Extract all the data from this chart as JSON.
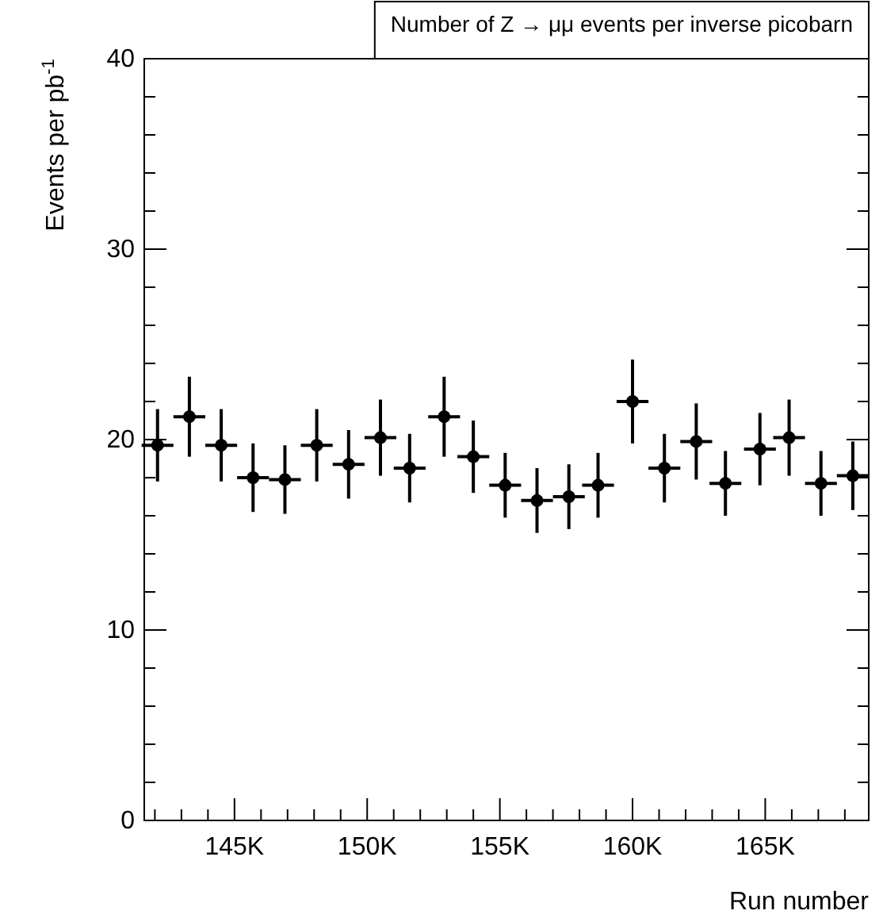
{
  "chart_data": {
    "type": "scatter",
    "title": "Number of Z → μμ events per inverse picobarn",
    "xlabel": "Run number",
    "ylabel": "Events per pb$^{-1}$",
    "x": [
      142.1,
      143.3,
      144.5,
      145.7,
      146.9,
      148.1,
      149.3,
      150.5,
      151.6,
      152.9,
      154.0,
      155.2,
      156.4,
      157.6,
      158.7,
      160.0,
      161.2,
      162.4,
      163.5,
      164.8,
      165.9,
      167.1,
      168.3
    ],
    "values": [
      19.7,
      21.2,
      19.7,
      18.0,
      17.9,
      19.7,
      18.7,
      20.1,
      18.5,
      21.2,
      19.1,
      17.6,
      16.8,
      17.0,
      17.6,
      22.0,
      18.5,
      19.9,
      17.7,
      19.5,
      20.1,
      17.7,
      18.1
    ],
    "errors": [
      1.9,
      2.1,
      1.9,
      1.8,
      1.8,
      1.9,
      1.8,
      2.0,
      1.8,
      2.1,
      1.9,
      1.7,
      1.7,
      1.7,
      1.7,
      2.2,
      1.8,
      2.0,
      1.7,
      1.9,
      2.0,
      1.7,
      1.8
    ],
    "xerrors": [
      0.6,
      0.6,
      0.6,
      0.6,
      0.6,
      0.6,
      0.6,
      0.6,
      0.6,
      0.6,
      0.6,
      0.6,
      0.6,
      0.6,
      0.6,
      0.6,
      0.6,
      0.6,
      0.6,
      0.6,
      0.6,
      0.6,
      0.6
    ],
    "color": "#000000",
    "marker": "circle",
    "xlim": [
      141.6,
      168.9
    ],
    "xticks": [
      {
        "value": 142,
        "label": null
      },
      {
        "value": 143,
        "label": null
      },
      {
        "value": 144,
        "label": null
      },
      {
        "value": 145,
        "label": "145K"
      },
      {
        "value": 146,
        "label": null
      },
      {
        "value": 147,
        "label": null
      },
      {
        "value": 148,
        "label": null
      },
      {
        "value": 149,
        "label": null
      },
      {
        "value": 150,
        "label": "150K"
      },
      {
        "value": 151,
        "label": null
      },
      {
        "value": 152,
        "label": null
      },
      {
        "value": 153,
        "label": null
      },
      {
        "value": 154,
        "label": null
      },
      {
        "value": 155,
        "label": "155K"
      },
      {
        "value": 156,
        "label": null
      },
      {
        "value": 157,
        "label": null
      },
      {
        "value": 158,
        "label": null
      },
      {
        "value": 159,
        "label": null
      },
      {
        "value": 160,
        "label": "160K"
      },
      {
        "value": 161,
        "label": null
      },
      {
        "value": 162,
        "label": null
      },
      {
        "value": 163,
        "label": null
      },
      {
        "value": 164,
        "label": null
      },
      {
        "value": 165,
        "label": "165K"
      },
      {
        "value": 166,
        "label": null
      },
      {
        "value": 167,
        "label": null
      },
      {
        "value": 168,
        "label": null
      }
    ],
    "ylim": [
      0,
      40
    ],
    "yticks": [
      0,
      {
        "value": 2,
        "label": null
      },
      {
        "value": 4,
        "label": null
      },
      {
        "value": 6,
        "label": null
      },
      {
        "value": 8,
        "label": null
      },
      10,
      {
        "value": 12,
        "label": null
      },
      {
        "value": 14,
        "label": null
      },
      {
        "value": 16,
        "label": null
      },
      {
        "value": 18,
        "label": null
      },
      20,
      {
        "value": 22,
        "label": null
      },
      {
        "value": 24,
        "label": null
      },
      {
        "value": 26,
        "label": null
      },
      {
        "value": 28,
        "label": null
      },
      30,
      {
        "value": 32,
        "label": null
      },
      {
        "value": 34,
        "label": null
      },
      {
        "value": 36,
        "label": null
      },
      {
        "value": 38,
        "label": null
      },
      40
    ],
    "grid": false
  }
}
